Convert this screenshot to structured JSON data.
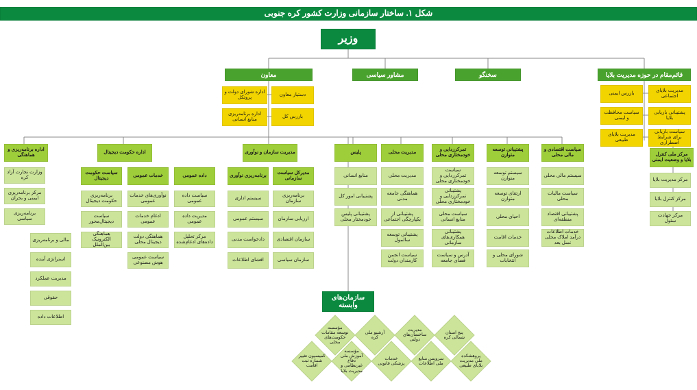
{
  "colors": {
    "title_bg": "#0b8a3f",
    "minister_bg": "#0b8a3f",
    "l1_green": "#4aa22e",
    "yellow": "#f2d400",
    "col_head": "#9fce3b",
    "leaf": "#cbe49a",
    "aff_head": "#0b8a3f",
    "diamond": "#cbe49a",
    "connector": "#888888"
  },
  "title": "شکل ۱. ساختار سازمانی وزارت کشور کره جنوبی",
  "minister": "وزیر",
  "l1": {
    "deputy_disaster": "قائم‌مقام در حوزه مدیریت بلایا",
    "spokesperson": "سخنگو",
    "political_advisor": "مشاور سیاسی",
    "deputy": "معاون"
  },
  "disaster_yellow": {
    "a": [
      "مدیریت بلایای اجتماعی",
      "پشتیبانی بازیابی بلایا",
      "سیاست بازیابی برای شرایط اضطراری"
    ],
    "b": [
      "بازرس ایمنی",
      "سیاست محافظت و ایمنی",
      "مدیریت بلایای طبیعی"
    ]
  },
  "disaster_green_head": "مرکز ملی کنترل بلایا و وضعیت ایمنی",
  "disaster_green_leaves": [
    "مرکز مدیریت بلایا",
    "مرکز کنترل بلایا",
    "مرکز جهادت سئول"
  ],
  "deputy_yellow": {
    "a": [
      "دستیار معاون",
      "بازرس کل"
    ],
    "b": [
      "اداره شورای دولت و پروتکل",
      "اداره برنامه‌ریزی منابع انسانی"
    ]
  },
  "columns": [
    {
      "head": "سیاست اقتصادی و مالی محلی",
      "leaves": [
        "سیستم مالی محلی",
        "سیاست مالیات محلی",
        "پشتیبانی اقتصاد منطقه‌ای",
        "خدمات اطلاعات درآمد املاک محلی نسل بعد"
      ]
    },
    {
      "head": "پشتیبانی توسعه متوازن",
      "leaves": [
        "سیستم توسعه متوازن",
        "ارتقای توسعه متوازن",
        "احیای محلی",
        "خدمات اقامت",
        "شورای محلی و انتخابات"
      ]
    },
    {
      "head": "تمرکززدایی و خودمختاری محلی",
      "leaves": [
        "سیاست تمرکززدایی و خودمختاری محلی",
        "پشتیبانی تمرکززدایی و خودمختاری محلی",
        "سیاست محلی منابع انسانی",
        "پشتیبانی همکاری‌های سازمانی",
        "آدرس و سیاست فضای جامعه"
      ]
    },
    {
      "head": "مدیریت محلی",
      "leaves": [
        "مدیریت محلی",
        "هماهنگی جامعه مدنی",
        "پشتیبانی از یکپارچگی اجتماعی",
        "پشتیبانی توسعه سالمول",
        "سیاست انجمن کارمندان دولت"
      ]
    },
    {
      "head": "پلیس",
      "leaves": [
        "منابع انسانی",
        "پشتیبانی امور کل",
        "پشتیبانی پلیس خودمختار محلی"
      ]
    },
    {
      "head2": [
        "مدیریت سازمان و نوآوری"
      ],
      "sub": [
        {
          "t": "مدیرکل سیاست سازمانی",
          "l": [
            "برنامه‌ریزی سازمان",
            "ارزیابی سازمان",
            "سازمان اقتصادی",
            "سازمان سیاسی"
          ]
        },
        {
          "t": "برنامه‌ریزی نوآوری",
          "l": [
            "سیستم اداری",
            "سیستم عمومی",
            "دادخواست مدنی",
            "افشای اطلاعات"
          ]
        }
      ]
    },
    {
      "head2": [
        "اداره حکومت دیجیتال"
      ],
      "sub": [
        {
          "t": "داده عمومی",
          "l": [
            "سیاست داده عمومی",
            "مدیریت داده عمومی",
            "مرکز تحلیل داده‌های ادغام‌شده"
          ]
        },
        {
          "t": "خدمات عمومی",
          "l": [
            "نوآوری‌های خدمات عمومی",
            "ادغام خدمات عمومی",
            "هماهنگی دولت دیجیتال محلی",
            "سیاست عمومی هوش مصنوعی"
          ]
        },
        {
          "t": "سیاست حکومت دیجیتال",
          "l": [
            "برنامه‌ریزی حکومت دیجیتال",
            "سیاست دیجیتال‌محور",
            "هماهنگی الکترونیک بین‌الملل"
          ]
        }
      ]
    },
    {
      "head2": [
        "اداره برنامه‌ریزی و هماهنگی"
      ],
      "leaves_col": [
        "وزارت تجارت آزاد کره",
        "مرکز برنامه‌ریزی ایمنی و بحران",
        "برنامه‌ریزی سیاسی"
      ],
      "extra": [
        "مالی و برنامه‌ریزی",
        "استراتژی آینده",
        "مدیریت عملکرد",
        "حقوقی",
        "اطلاعات داده"
      ]
    }
  ],
  "affiliated_head": "سازمان‌های وابسته",
  "diamonds": [
    "پنج استان شمالی کره",
    "مدیریت ساختمان‌های دولتی",
    "آرشیو ملی کره",
    "مؤسسه توسعه مقامات حکومت‌های محلی",
    "پروهشکده ملی مدیریت بلایای طبیعی",
    "سرویس منابع ملی اطلاعات",
    "خدمات پزشکی قانونی",
    "مؤسسه آموزش ملی دفاع غیرنظامی و مدیریت بلایا",
    "کمیسیون تغییر شماره ثبت اقامت"
  ]
}
